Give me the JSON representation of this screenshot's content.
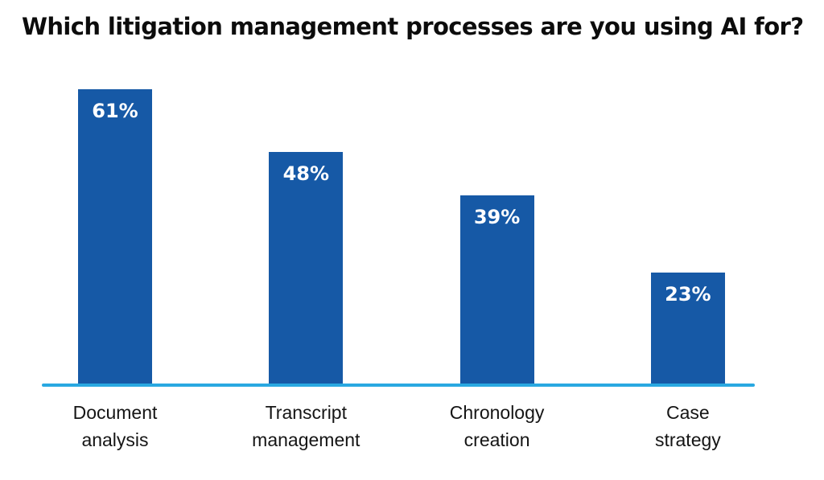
{
  "title": "Which litigation management processes are you using AI for?",
  "colors": {
    "bar_fill": "#1659a6",
    "baseline": "#29a8e1",
    "title_text": "#0c0c0c",
    "category_text": "#151515",
    "value_text": "#ffffff",
    "background": "#ffffff"
  },
  "chart_data": {
    "type": "bar",
    "title": "Which litigation management processes are you using AI for?",
    "categories": [
      "Document analysis",
      "Transcript management",
      "Chronology creation",
      "Case strategy"
    ],
    "display_labels": [
      "Document\nanalysis",
      "Transcript\nmanagement",
      "Chronology\ncreation",
      "Case\nstrategy"
    ],
    "values": [
      61,
      48,
      39,
      23
    ],
    "value_labels": [
      "61%",
      "48%",
      "39%",
      "23%"
    ],
    "unit": "%",
    "xlabel": "",
    "ylabel": "",
    "ylim": [
      0,
      100
    ],
    "grid": false,
    "legend": false,
    "value_label_position": "inside-top",
    "baseline_axis": "x"
  }
}
